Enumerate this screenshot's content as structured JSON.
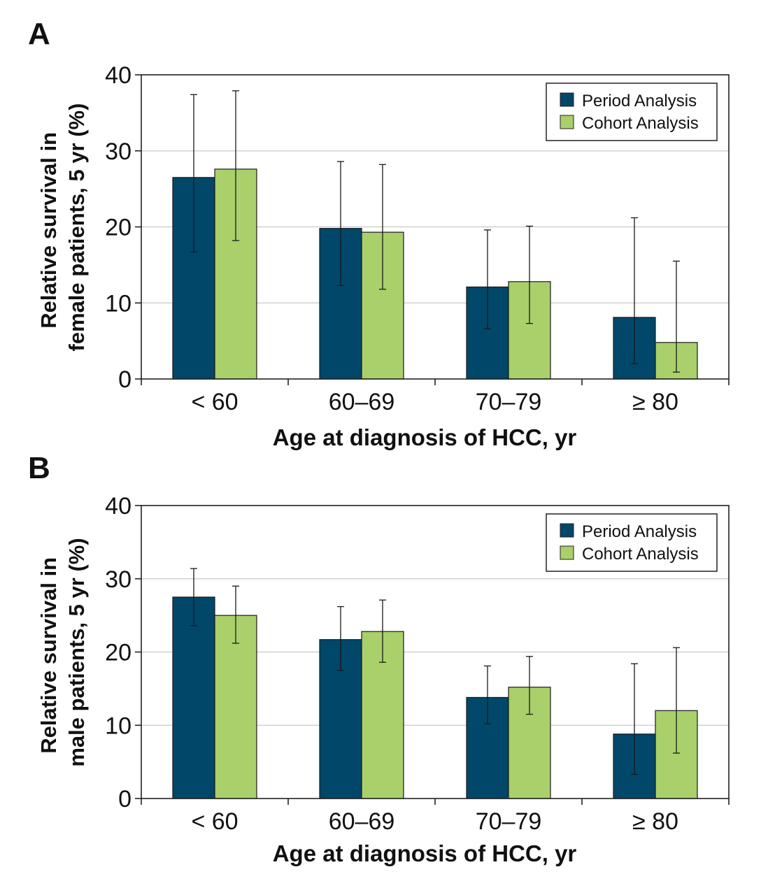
{
  "colors": {
    "period": "#00476a",
    "cohort": "#a9d06a",
    "grid": "#c8c8c8",
    "axis": "#222222"
  },
  "chart_data": [
    {
      "panel": "A",
      "type": "bar",
      "categories": [
        "< 60",
        "60–69",
        "70–79",
        "≥ 80"
      ],
      "series": [
        {
          "name": "Period Analysis",
          "values": [
            26.5,
            19.8,
            12.1,
            8.1
          ],
          "err_low": [
            16.7,
            12.3,
            6.6,
            2.0
          ],
          "err_high": [
            37.4,
            28.6,
            19.6,
            21.2
          ]
        },
        {
          "name": "Cohort Analysis",
          "values": [
            27.6,
            19.3,
            12.8,
            4.8
          ],
          "err_low": [
            18.2,
            11.8,
            7.3,
            0.9
          ],
          "err_high": [
            37.9,
            28.2,
            20.1,
            15.5
          ]
        }
      ],
      "yticks": [
        0,
        10,
        20,
        30,
        40
      ],
      "ylim": [
        0,
        40
      ],
      "xlabel": "Age at diagnosis of HCC, yr",
      "ylabel_lines": [
        "Relative survival in",
        "female patients, 5 yr (%)"
      ],
      "grid": true,
      "legend_position": "top-right"
    },
    {
      "panel": "B",
      "type": "bar",
      "categories": [
        "< 60",
        "60–69",
        "70–79",
        "≥ 80"
      ],
      "series": [
        {
          "name": "Period Analysis",
          "values": [
            27.5,
            21.7,
            13.8,
            8.8
          ],
          "err_low": [
            23.6,
            17.5,
            10.2,
            3.3
          ],
          "err_high": [
            31.4,
            26.2,
            18.1,
            18.4
          ]
        },
        {
          "name": "Cohort Analysis",
          "values": [
            25.0,
            22.8,
            15.2,
            12.0
          ],
          "err_low": [
            21.2,
            18.6,
            11.5,
            6.2
          ],
          "err_high": [
            29.0,
            27.1,
            19.4,
            20.6
          ]
        }
      ],
      "yticks": [
        0,
        10,
        20,
        30,
        40
      ],
      "ylim": [
        0,
        40
      ],
      "xlabel": "Age at diagnosis of HCC, yr",
      "ylabel_lines": [
        "Relative survival in",
        "male patients, 5 yr (%)"
      ],
      "grid": true,
      "legend_position": "top-right"
    }
  ]
}
